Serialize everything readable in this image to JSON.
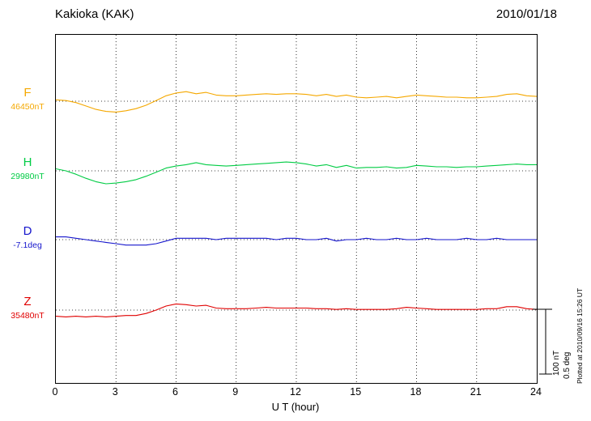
{
  "chart_data": {
    "type": "line",
    "title": "Kakioka (KAK)",
    "date": "2010/01/18",
    "xlabel": "U T (hour)",
    "x_ticks": [
      0,
      3,
      6,
      9,
      12,
      15,
      18,
      21,
      24
    ],
    "xlim": [
      0,
      24
    ],
    "x_start": 0,
    "x_step": 0.5,
    "grid": "dotted vertical lines every 3 hours, dotted horizontal baseline per trace",
    "series_note": "values are deviations from each trace base_value, read against the scale bar (100 nT / 0.5 deg)",
    "series": [
      {
        "name": "F",
        "base_value": "46450nT",
        "unit": "nT",
        "color": "#f5a800",
        "values": [
          2,
          1,
          -2,
          -7,
          -12,
          -15,
          -16,
          -14,
          -11,
          -6,
          1,
          8,
          12,
          14,
          11,
          13,
          9,
          8,
          8,
          9,
          10,
          11,
          10,
          11,
          11,
          10,
          8,
          10,
          7,
          9,
          6,
          5,
          6,
          7,
          5,
          7,
          9,
          8,
          7,
          6,
          6,
          5,
          5,
          6,
          7,
          10,
          11,
          8,
          7
        ]
      },
      {
        "name": "H",
        "base_value": "29980nT",
        "unit": "nT",
        "color": "#00cc44",
        "values": [
          3,
          0,
          -5,
          -11,
          -16,
          -19,
          -18,
          -16,
          -13,
          -8,
          -2,
          4,
          7,
          9,
          12,
          9,
          8,
          7,
          8,
          9,
          10,
          11,
          12,
          13,
          12,
          10,
          7,
          9,
          5,
          8,
          4,
          5,
          5,
          6,
          4,
          5,
          8,
          7,
          6,
          6,
          5,
          6,
          6,
          7,
          8,
          9,
          10,
          9,
          9
        ]
      },
      {
        "name": "D",
        "base_value": "-7.1deg",
        "unit": "deg",
        "color": "#1515cc",
        "values": [
          0.02,
          0.02,
          0.01,
          0,
          -0.01,
          -0.02,
          -0.03,
          -0.04,
          -0.04,
          -0.04,
          -0.03,
          -0.01,
          0.01,
          0.01,
          0.01,
          0.01,
          0,
          0.01,
          0.01,
          0.01,
          0.01,
          0.01,
          0,
          0.01,
          0.01,
          0,
          0,
          0.01,
          -0.01,
          0,
          0,
          0.01,
          0,
          0,
          0.01,
          0,
          0,
          0.01,
          0,
          0,
          0,
          0.01,
          0,
          0,
          0.01,
          0,
          0,
          0,
          0
        ]
      },
      {
        "name": "Z",
        "base_value": "35480nT",
        "unit": "nT",
        "color": "#e00000",
        "values": [
          -9,
          -10,
          -9,
          -10,
          -9,
          -10,
          -9,
          -8,
          -8,
          -5,
          0,
          6,
          9,
          8,
          6,
          7,
          3,
          2,
          2,
          2,
          3,
          4,
          3,
          3,
          3,
          3,
          2,
          2,
          1,
          2,
          1,
          1,
          1,
          1,
          2,
          4,
          3,
          2,
          1,
          1,
          1,
          1,
          1,
          2,
          2,
          5,
          5,
          2,
          1
        ]
      }
    ],
    "scale_bar": {
      "labels": [
        "100 nT",
        "0.5 deg"
      ]
    },
    "plotted_note": "Plotted at 2010/09/16 15:26 UT"
  }
}
